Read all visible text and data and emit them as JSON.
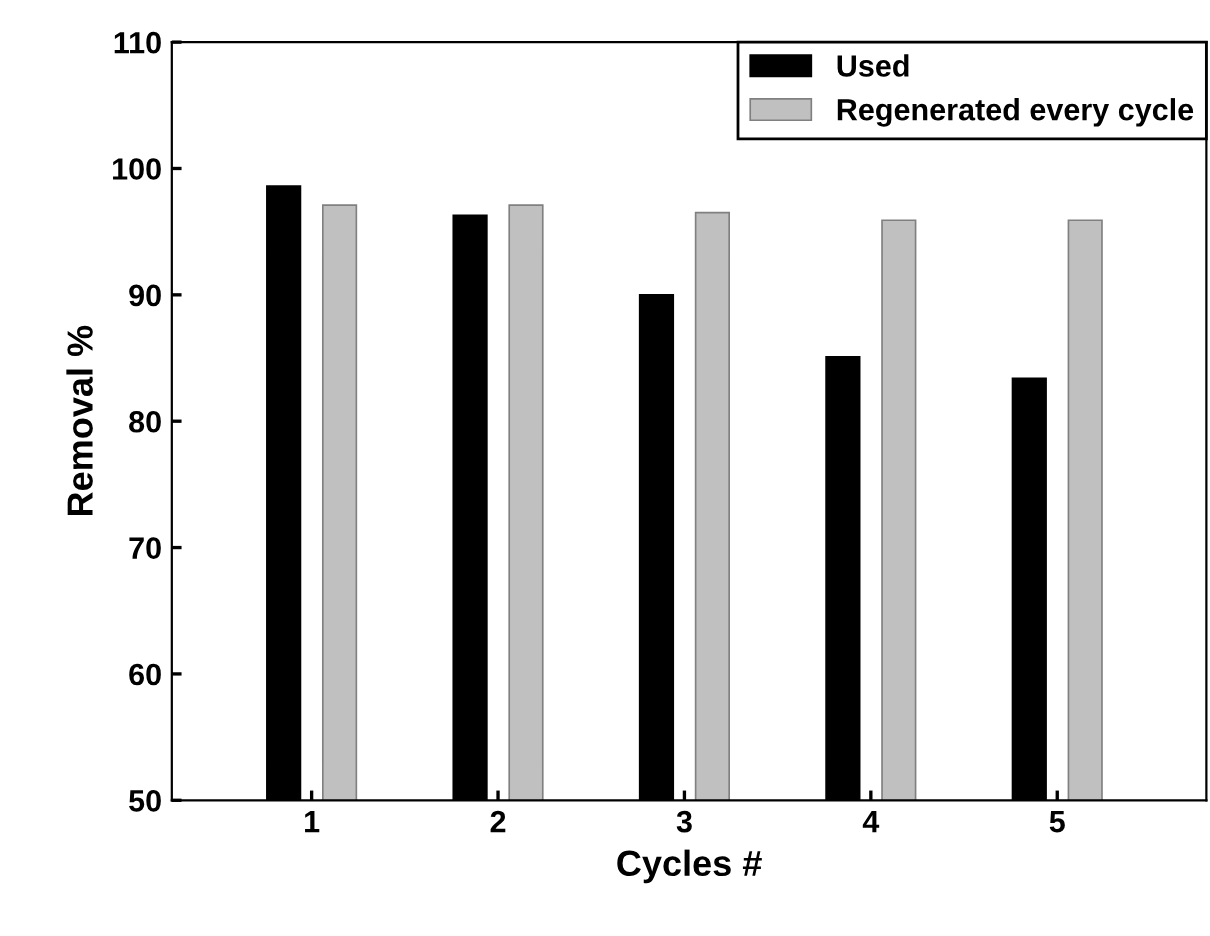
{
  "chart_data": {
    "type": "bar",
    "xlabel": "Cycles #",
    "ylabel": "Removal %",
    "categories": [
      "1",
      "2",
      "3",
      "4",
      "5"
    ],
    "series": [
      {
        "name": "Used",
        "color": "#000000",
        "values": [
          98.6,
          96.3,
          90.0,
          85.1,
          83.4
        ]
      },
      {
        "name": "Regenerated every cycle",
        "color": "#c0c0c0",
        "values": [
          97.1,
          97.1,
          96.5,
          95.9,
          95.9
        ]
      }
    ],
    "ylim": [
      50,
      110
    ],
    "yticks": [
      50,
      60,
      70,
      80,
      90,
      100,
      110
    ],
    "grid": false,
    "legend": "top right"
  }
}
